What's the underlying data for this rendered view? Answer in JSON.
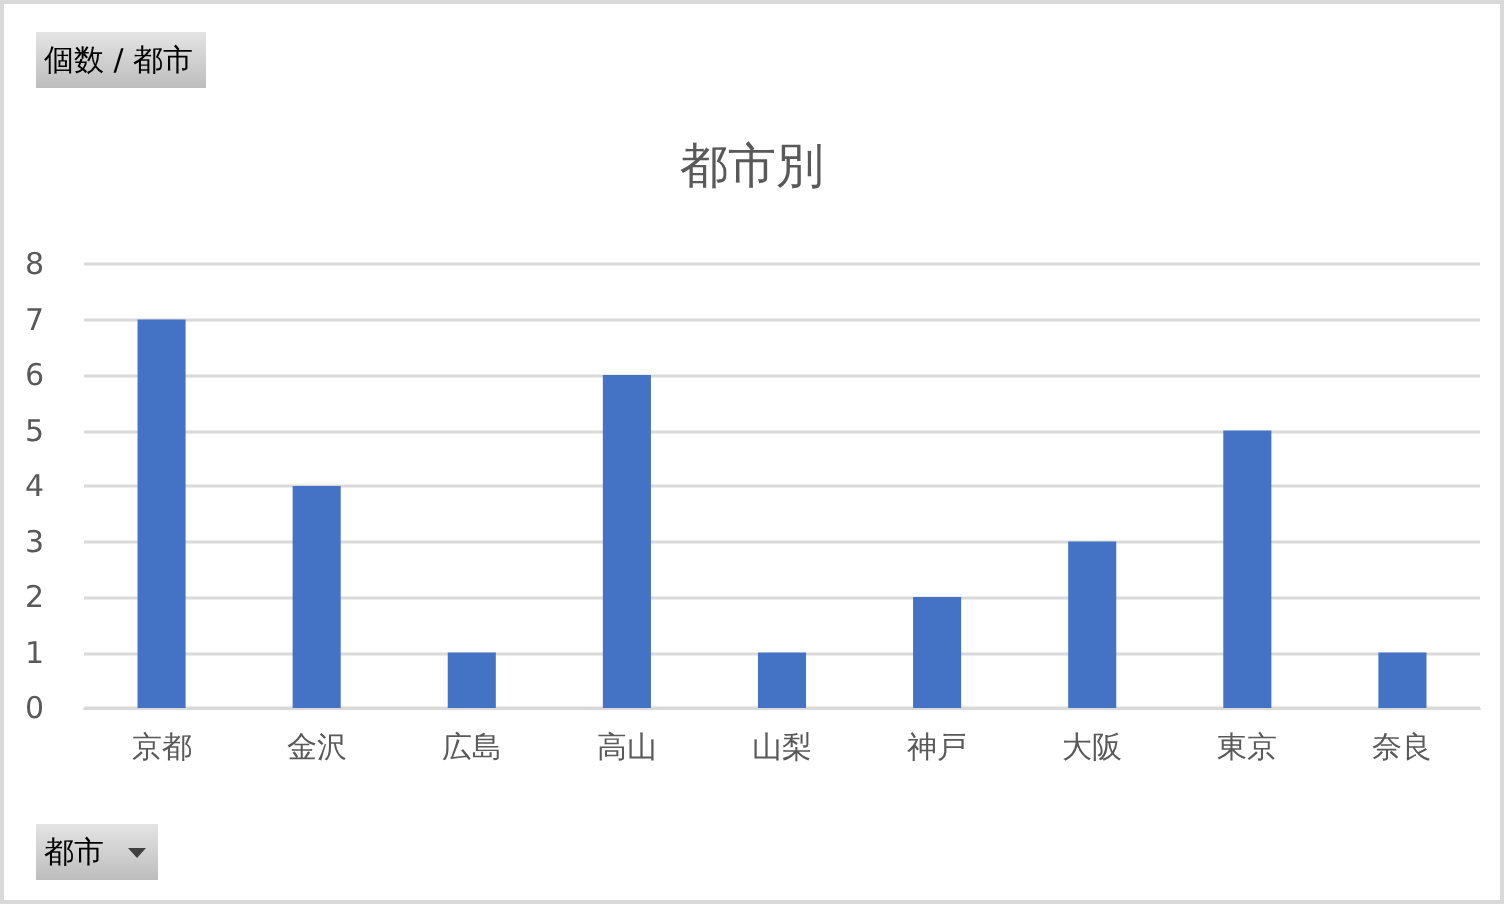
{
  "chart_data": {
    "type": "bar",
    "title": "都市別",
    "categories": [
      "京都",
      "金沢",
      "広島",
      "高山",
      "山梨",
      "神戸",
      "大阪",
      "東京",
      "奈良"
    ],
    "values": [
      7,
      4,
      1,
      6,
      1,
      2,
      3,
      5,
      1
    ],
    "color": "#4472c4",
    "ylim": [
      0,
      8
    ],
    "yticks": [
      0,
      1,
      2,
      3,
      4,
      5,
      6,
      7,
      8
    ],
    "grid": "y",
    "annotations": [
      "個数 / 都市",
      "都市"
    ]
  }
}
